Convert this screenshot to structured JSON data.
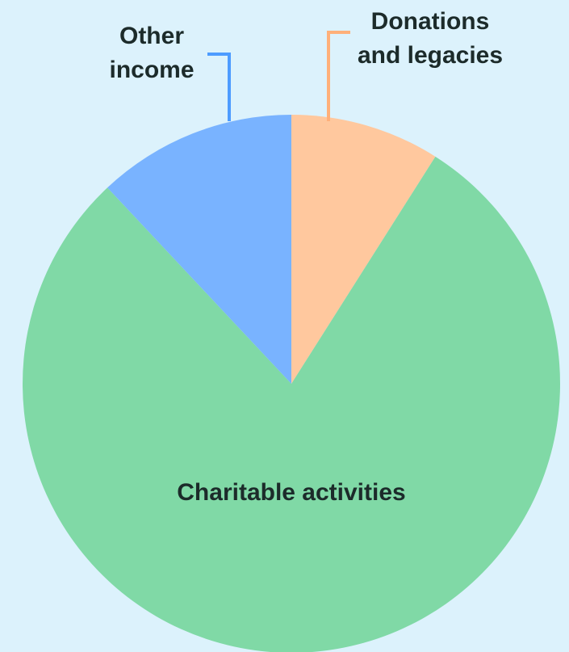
{
  "chart_data": {
    "type": "pie",
    "title": "",
    "series": [
      {
        "values": [
          {
            "label": "Donations and legacies",
            "label_lines": [
              "Donations",
              "and legacies"
            ],
            "value": 9,
            "color": "#ffc89e",
            "leader_color": "#ffb07a"
          },
          {
            "label": "Charitable activities",
            "label_lines": [
              "Charitable activities"
            ],
            "value": 79,
            "color": "#80d9a6",
            "leader_color": "#80d9a6"
          },
          {
            "label": "Other income",
            "label_lines": [
              "Other",
              "income"
            ],
            "value": 12,
            "color": "#79b3ff",
            "leader_color": "#4d9cff"
          }
        ]
      }
    ],
    "start_angle_deg": 0,
    "direction": "clockwise",
    "legend": "none",
    "label_placement": {
      "Donations and legacies": "outside-top-right",
      "Charitable activities": "inside",
      "Other income": "outside-top-left"
    }
  }
}
